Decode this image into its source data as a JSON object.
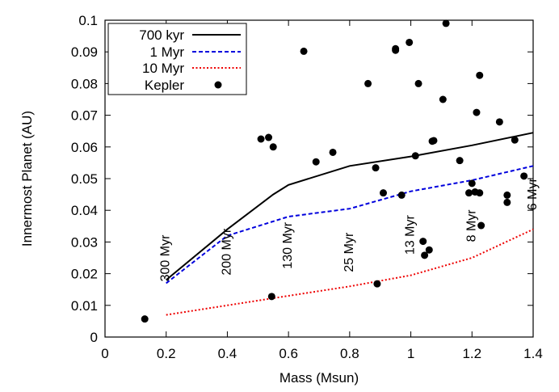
{
  "chart_data": {
    "type": "line",
    "xlabel": "Mass (Msun)",
    "ylabel": "Innermost Planet (AU)",
    "xlim": [
      0,
      1.4
    ],
    "ylim": [
      0,
      0.1
    ],
    "xticks": [
      0,
      0.2,
      0.4,
      0.6,
      0.8,
      1.0,
      1.2,
      1.4
    ],
    "xtick_labels": [
      "0",
      "0.2",
      "0.4",
      "0.6",
      "0.8",
      "1",
      "1.2",
      "1.4"
    ],
    "yticks": [
      0,
      0.01,
      0.02,
      0.03,
      0.04,
      0.05,
      0.06,
      0.07,
      0.08,
      0.09,
      0.1
    ],
    "ytick_labels": [
      "0",
      "0.01",
      "0.02",
      "0.03",
      "0.04",
      "0.05",
      "0.06",
      "0.07",
      "0.08",
      "0.09",
      "0.1"
    ],
    "legend_position": "top-left",
    "series": [
      {
        "name": "700 kyr",
        "style": "solid",
        "color": "#000000",
        "x": [
          0.2,
          0.4,
          0.55,
          0.6,
          0.8,
          1.0,
          1.2,
          1.4
        ],
        "y": [
          0.018,
          0.034,
          0.045,
          0.048,
          0.054,
          0.057,
          0.0605,
          0.0645
        ]
      },
      {
        "name": "1 Myr",
        "style": "dashed",
        "color": "#0000dd",
        "x": [
          0.2,
          0.4,
          0.6,
          0.8,
          1.0,
          1.2,
          1.4
        ],
        "y": [
          0.017,
          0.032,
          0.038,
          0.0405,
          0.046,
          0.0495,
          0.054
        ]
      },
      {
        "name": "10 Myr",
        "style": "dotted",
        "color": "#ee0000",
        "x": [
          0.2,
          0.4,
          0.6,
          0.8,
          1.0,
          1.2,
          1.4
        ],
        "y": [
          0.007,
          0.01,
          0.013,
          0.016,
          0.0195,
          0.025,
          0.034
        ]
      },
      {
        "name": "Kepler",
        "style": "points",
        "color": "#000000",
        "x": [
          0.13,
          0.51,
          0.535,
          0.545,
          0.55,
          0.65,
          0.69,
          0.745,
          0.86,
          0.885,
          0.89,
          0.91,
          0.95,
          0.95,
          0.97,
          0.995,
          1.015,
          1.025,
          1.04,
          1.045,
          1.06,
          1.07,
          1.075,
          1.105,
          1.115,
          1.16,
          1.19,
          1.2,
          1.21,
          1.215,
          1.225,
          1.225,
          1.23,
          1.29,
          1.315,
          1.315,
          1.34,
          1.37
        ],
        "y": [
          0.0057,
          0.0625,
          0.063,
          0.0128,
          0.06,
          0.0902,
          0.0553,
          0.0583,
          0.08,
          0.0534,
          0.0168,
          0.0455,
          0.0905,
          0.091,
          0.0448,
          0.093,
          0.0572,
          0.08,
          0.0302,
          0.0258,
          0.0275,
          0.0618,
          0.062,
          0.075,
          0.099,
          0.0557,
          0.0455,
          0.0485,
          0.0458,
          0.0709,
          0.0826,
          0.0455,
          0.0352,
          0.0679,
          0.0448,
          0.0425,
          0.0622,
          0.0508
        ]
      }
    ],
    "annotations": [
      {
        "text": "300 Myr",
        "x": 0.2,
        "y": 0.0175
      },
      {
        "text": "200 Myr",
        "x": 0.4,
        "y": 0.0195
      },
      {
        "text": "130 Myr",
        "x": 0.6,
        "y": 0.0215
      },
      {
        "text": "25  Myr",
        "x": 0.8,
        "y": 0.0205
      },
      {
        "text": "13 Myr",
        "x": 1.0,
        "y": 0.026
      },
      {
        "text": "8 Myr",
        "x": 1.2,
        "y": 0.03
      },
      {
        "text": "6 Myr",
        "x": 1.4,
        "y": 0.04
      }
    ]
  }
}
